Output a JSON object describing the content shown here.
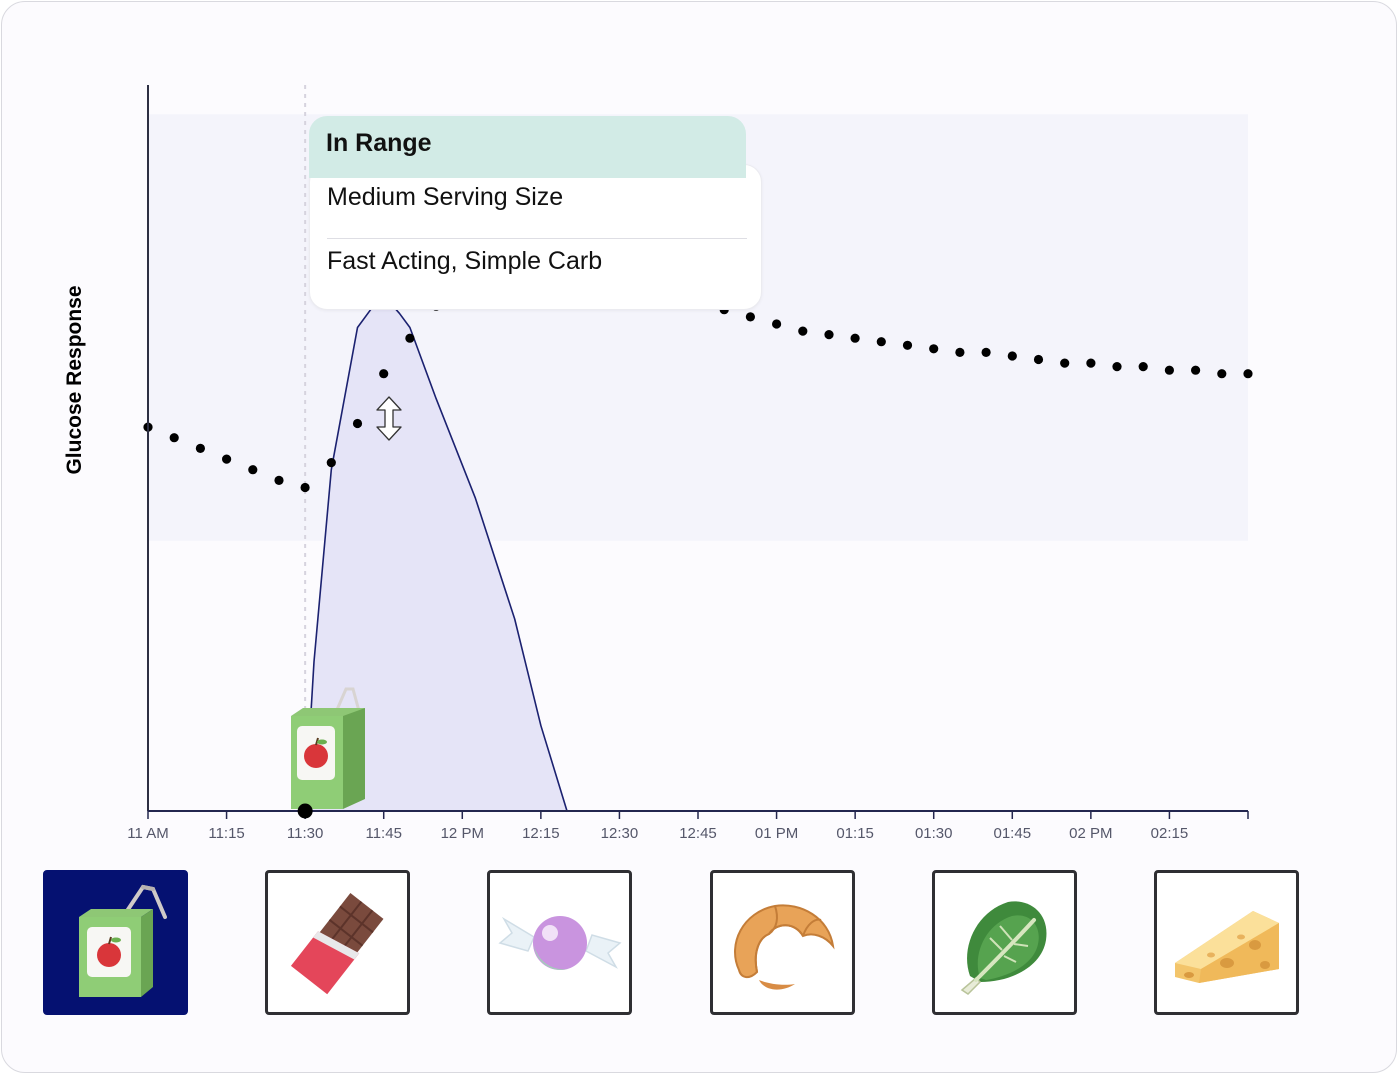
{
  "tooltip": {
    "status": "In Range",
    "serving": "Medium Serving Size",
    "carb_type": "Fast Acting, Simple Carb"
  },
  "foods": [
    {
      "name": "juice-box",
      "selected": true
    },
    {
      "name": "chocolate-bar",
      "selected": false
    },
    {
      "name": "candy",
      "selected": false
    },
    {
      "name": "croissant",
      "selected": false
    },
    {
      "name": "lettuce",
      "selected": false
    },
    {
      "name": "cheese",
      "selected": false
    }
  ],
  "colors": {
    "selected_tile": "#051171",
    "in_range_header": "#d2ebe6",
    "spike_fill": "#e5e4f7",
    "spike_line": "#1b2170",
    "range_band": "#f4f4fb"
  },
  "chart_data": {
    "type": "line",
    "ylabel": "Glucose Response",
    "xlabel": "",
    "x_ticks": [
      "11 AM",
      "11:15",
      "11:30",
      "11:45",
      "12 PM",
      "12:15",
      "12:30",
      "12:45",
      "01 PM",
      "01:15",
      "01:30",
      "01:45",
      "02 PM",
      "02:15"
    ],
    "x_range_minutes": [
      0,
      210
    ],
    "y_range": [
      0,
      100
    ],
    "in_range_band": [
      38,
      98
    ],
    "meal_time_minutes": 30,
    "series": [
      {
        "style": "dotted",
        "x": [
          0,
          5,
          10,
          15,
          20,
          25,
          30,
          35,
          40,
          45,
          50,
          55,
          60,
          65,
          70,
          75,
          80,
          85,
          90,
          95,
          100,
          105,
          110,
          115,
          120,
          125,
          130,
          135,
          140,
          145,
          150,
          155,
          160,
          165,
          170,
          175,
          180,
          185,
          190,
          195,
          200,
          205,
          210
        ],
        "y": [
          54,
          52.5,
          51,
          49.5,
          48,
          46.5,
          45.5,
          49,
          54.5,
          61.5,
          66.5,
          71,
          74.5,
          77,
          78.5,
          78.5,
          77,
          76,
          74.5,
          73.5,
          72.5,
          71.5,
          70.5,
          69.5,
          68.5,
          67.5,
          67,
          66.5,
          66,
          65.5,
          65,
          64.5,
          64.5,
          64,
          63.5,
          63,
          63,
          62.5,
          62.5,
          62,
          62,
          61.5,
          61.5
        ]
      },
      {
        "style": "filled-area",
        "x": [
          30,
          31.7,
          35,
          40,
          42.5,
          45,
          48,
          50,
          55,
          62.5,
          70,
          75,
          80
        ],
        "y": [
          0,
          21,
          48,
          68,
          70.5,
          72.5,
          70,
          68,
          58,
          44,
          27,
          12,
          0
        ]
      }
    ]
  }
}
